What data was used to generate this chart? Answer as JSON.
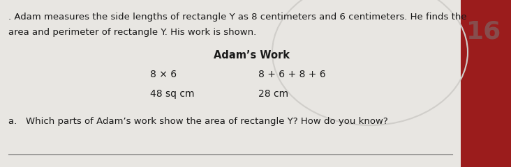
{
  "paper_color": "#e8e6e2",
  "ellipse_color": "#d0ceca",
  "title_text": "Adam’s Work",
  "line1_left": "8 × 6",
  "line1_right": "8 + 6 + 8 + 6",
  "line2_left": "48 sq cm",
  "line2_right": "28 cm",
  "intro_line1": ". Adam measures the side lengths of rectangle Y as 8 centimeters and 6 centimeters. He finds the",
  "intro_line2": "area and perimeter of rectangle Y. His work is shown.",
  "question": "a.   Which parts of Adam’s work show the area of rectangle Y? How do you know?",
  "right_bg": "#9b1c1c",
  "font_color": "#1a1a1a",
  "title_fontsize": 10.5,
  "body_fontsize": 10,
  "small_fontsize": 9.5,
  "intro_fontsize": 9.5
}
